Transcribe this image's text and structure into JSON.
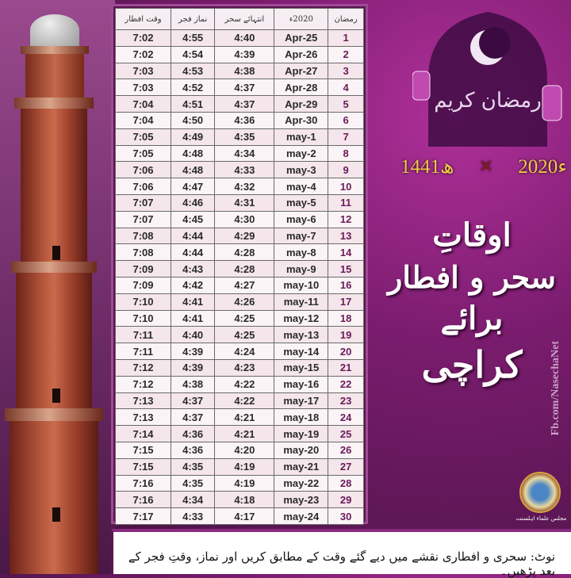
{
  "table": {
    "headers": [
      "رمضان",
      "2020ء",
      "انتہائے سحر",
      "نماز فجر",
      "وقت افطار"
    ],
    "rows": [
      [
        "1",
        "25-Apr",
        "4:40",
        "4:55",
        "7:02"
      ],
      [
        "2",
        "26-Apr",
        "4:39",
        "4:54",
        "7:02"
      ],
      [
        "3",
        "27-Apr",
        "4:38",
        "4:53",
        "7:03"
      ],
      [
        "4",
        "28-Apr",
        "4:37",
        "4:52",
        "7:03"
      ],
      [
        "5",
        "29-Apr",
        "4:37",
        "4:51",
        "7:04"
      ],
      [
        "6",
        "30-Apr",
        "4:36",
        "4:50",
        "7:04"
      ],
      [
        "7",
        "1-may",
        "4:35",
        "4:49",
        "7:05"
      ],
      [
        "8",
        "2-may",
        "4:34",
        "4:48",
        "7:05"
      ],
      [
        "9",
        "3-may",
        "4:33",
        "4:48",
        "7:06"
      ],
      [
        "10",
        "4-may",
        "4:32",
        "4:47",
        "7:06"
      ],
      [
        "11",
        "5-may",
        "4:31",
        "4:46",
        "7:07"
      ],
      [
        "12",
        "6-may",
        "4:30",
        "4:45",
        "7:07"
      ],
      [
        "13",
        "7-may",
        "4:29",
        "4:44",
        "7:08"
      ],
      [
        "14",
        "8-may",
        "4:28",
        "4:44",
        "7:08"
      ],
      [
        "15",
        "9-may",
        "4:28",
        "4:43",
        "7:09"
      ],
      [
        "16",
        "10-may",
        "4:27",
        "4:42",
        "7:09"
      ],
      [
        "17",
        "11-may",
        "4:26",
        "4:41",
        "7:10"
      ],
      [
        "18",
        "12-may",
        "4:25",
        "4:41",
        "7:10"
      ],
      [
        "19",
        "13-may",
        "4:25",
        "4:40",
        "7:11"
      ],
      [
        "20",
        "14-may",
        "4:24",
        "4:39",
        "7:11"
      ],
      [
        "21",
        "15-may",
        "4:23",
        "4:39",
        "7:12"
      ],
      [
        "22",
        "16-may",
        "4:22",
        "4:38",
        "7:12"
      ],
      [
        "23",
        "17-may",
        "4:22",
        "4:37",
        "7:13"
      ],
      [
        "24",
        "18-may",
        "4:21",
        "4:37",
        "7:13"
      ],
      [
        "25",
        "19-may",
        "4:21",
        "4:36",
        "7:14"
      ],
      [
        "26",
        "20-may",
        "4:20",
        "4:36",
        "7:15"
      ],
      [
        "27",
        "21-may",
        "4:19",
        "4:35",
        "7:15"
      ],
      [
        "28",
        "22-may",
        "4:19",
        "4:35",
        "7:16"
      ],
      [
        "29",
        "23-may",
        "4:18",
        "4:34",
        "7:16"
      ],
      [
        "30",
        "24-may",
        "4:17",
        "4:33",
        "7:17"
      ]
    ]
  },
  "badge": {
    "calligraphy": "رمضان کریم"
  },
  "years": {
    "gregorian": "2020ء",
    "hijri": "1441ھ"
  },
  "title": {
    "line1": "اوقاتِ",
    "line2": "سحر و افطار",
    "line3": "برائے",
    "line4": "کراچی"
  },
  "social": "Fb.com/NasechaNet",
  "logo_caption": "مجلس علماء اہلسنت",
  "note": "نوٹ: سحری و افطاری نقشے میں دیے گئے وقت کے مطابق کریں اور نماز، وقتِ فجر کے بعد پڑھیں۔",
  "colors": {
    "background": "#6a1a5e",
    "accent_gold": "#f3c64a",
    "row_number": "#6a1a5a"
  }
}
